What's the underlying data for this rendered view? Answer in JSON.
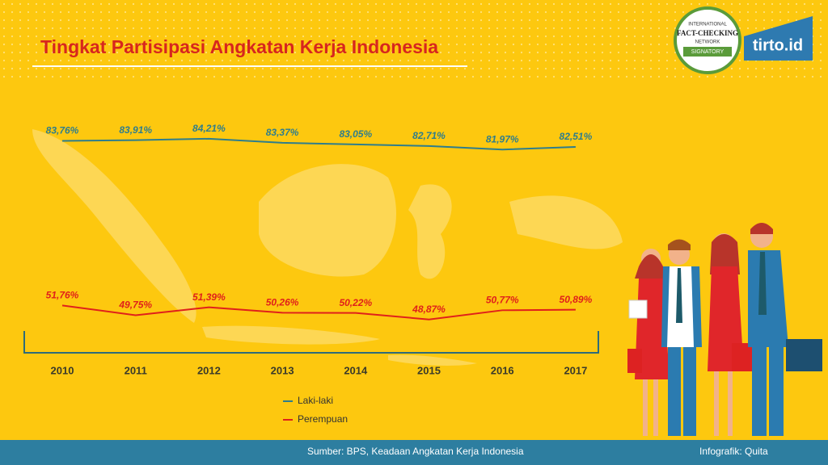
{
  "chart_data": {
    "type": "line",
    "title": "Tingkat Partisipasi Angkatan Kerja Indonesia",
    "categories": [
      "2010",
      "2011",
      "2012",
      "2013",
      "2014",
      "2015",
      "2016",
      "2017"
    ],
    "series": [
      {
        "name": "Laki-laki",
        "color": "#2e7d8c",
        "values": [
          83.76,
          83.91,
          84.21,
          83.37,
          83.05,
          82.71,
          81.97,
          82.51
        ],
        "value_labels": [
          "83,76%",
          "83,91%",
          "84,21%",
          "83,37%",
          "83,05%",
          "82,71%",
          "81,97%",
          "82,51%"
        ]
      },
      {
        "name": "Perempuan",
        "color": "#e0201b",
        "values": [
          51.76,
          49.75,
          51.39,
          50.26,
          50.22,
          48.87,
          50.77,
          50.89
        ],
        "value_labels": [
          "51,76%",
          "49,75%",
          "51,39%",
          "50,26%",
          "50,22%",
          "48,87%",
          "50,77%",
          "50,89%"
        ]
      }
    ],
    "legend": "bottom",
    "source": "Sumber: BPS, Keadaan Angkatan Kerja Indonesia",
    "credit": "Infografik: Quita",
    "branding": {
      "logo": "tirto.id",
      "badge_top": "INTERNATIONAL",
      "badge_main": "FACT-CHECKING",
      "badge_sub": "NETWORK",
      "badge_bottom": "SIGNATORY"
    }
  }
}
